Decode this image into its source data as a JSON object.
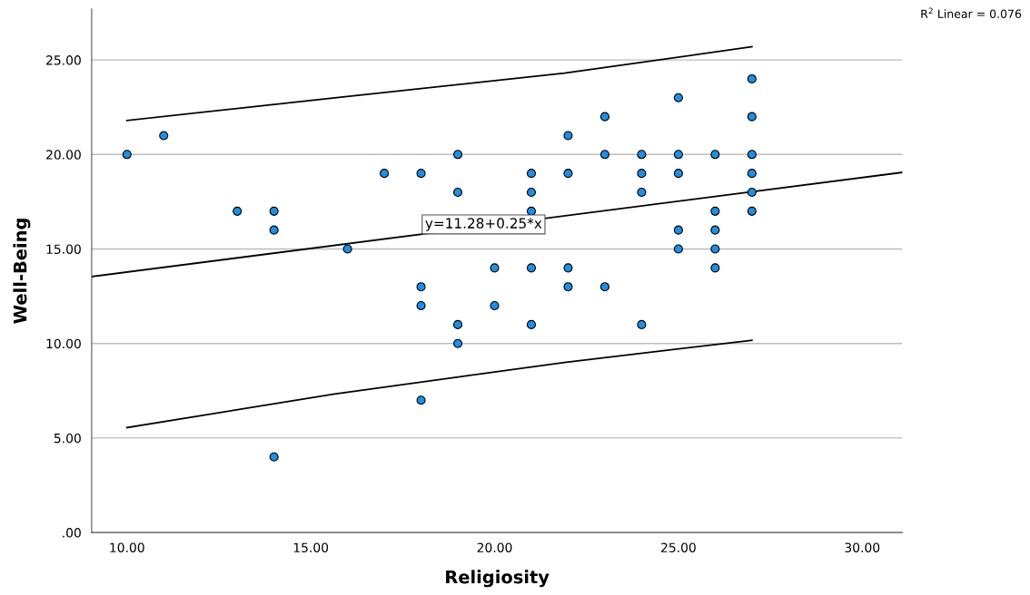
{
  "chart_data": {
    "type": "scatter",
    "xlabel": "Religiosity",
    "ylabel": "Well-Being",
    "xlim": [
      9.04,
      31.09
    ],
    "ylim": [
      0,
      27.7
    ],
    "xticks": [
      {
        "value": 10,
        "label": "10.00"
      },
      {
        "value": 15,
        "label": "15.00"
      },
      {
        "value": 20,
        "label": "20.00"
      },
      {
        "value": 25,
        "label": "25.00"
      },
      {
        "value": 30,
        "label": "30.00"
      }
    ],
    "yticks": [
      {
        "value": 0,
        "label": ".00"
      },
      {
        "value": 5,
        "label": "5.00"
      },
      {
        "value": 10,
        "label": "10.00"
      },
      {
        "value": 15,
        "label": "15.00"
      },
      {
        "value": 20,
        "label": "20.00"
      },
      {
        "value": 25,
        "label": "25.00"
      }
    ],
    "grid": "y",
    "series": [
      {
        "type": "scatter",
        "marker": "circle",
        "color": "#1f8ee3",
        "x": [
          10,
          11,
          13,
          14,
          14,
          14,
          16,
          17,
          18,
          18,
          18,
          18,
          19,
          19,
          19,
          19,
          20,
          20,
          21,
          21,
          21,
          21,
          21,
          22,
          22,
          22,
          22,
          23,
          23,
          23,
          24,
          24,
          24,
          24,
          25,
          25,
          25,
          25,
          25,
          26,
          26,
          26,
          26,
          26,
          27,
          27,
          27,
          27,
          27,
          27
        ],
        "values": [
          20,
          21,
          17,
          17,
          16,
          4,
          15,
          19,
          19,
          13,
          12,
          7,
          20,
          18,
          11,
          10,
          14,
          12,
          19,
          18,
          17,
          14,
          11,
          21,
          19,
          14,
          13,
          22,
          20,
          13,
          20,
          19,
          18,
          11,
          23,
          20,
          19,
          16,
          15,
          20,
          17,
          16,
          15,
          14,
          24,
          22,
          20,
          19,
          18,
          17
        ]
      },
      {
        "type": "line",
        "color": "#000000",
        "x": [
          9.04,
          31.09
        ],
        "values": [
          13.54,
          19.05
        ]
      },
      {
        "type": "line",
        "color": "#000000",
        "x": [
          10,
          15.65,
          21.9,
          27
        ],
        "values": [
          21.8,
          23.0,
          24.3,
          25.7
        ]
      },
      {
        "type": "line",
        "color": "#000000",
        "x": [
          10,
          15.65,
          21.9,
          27
        ],
        "values": [
          5.55,
          7.33,
          9.0,
          10.17
        ]
      }
    ],
    "annotations": [
      {
        "text": "y=11.28+0.25*x",
        "x": 19.7,
        "y": 16.3
      },
      "R$^{2}$ Linear = 0.076"
    ]
  }
}
